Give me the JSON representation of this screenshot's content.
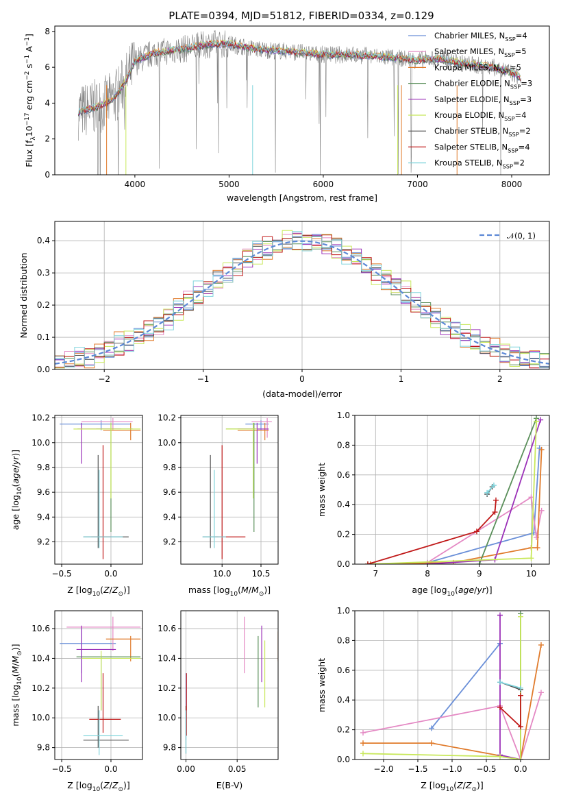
{
  "figure": {
    "title": "PLATE=0394, MJD=51812, FIBERID=0334, z=0.129"
  },
  "colors": {
    "chabrier_miles": "#6a8fd8",
    "salpeter_miles": "#e489c4",
    "kroupa_miles": "#e07b2c",
    "chabrier_elodie": "#5a8f5a",
    "salpeter_elodie": "#9b30b8",
    "kroupa_elodie": "#c8e85a",
    "chabrier_stelib": "#555555",
    "salpeter_stelib": "#c01818",
    "kroupa_stelib": "#7fd4dc",
    "data": "#808080",
    "grid": "#b0b0b0"
  },
  "legend": [
    {
      "pre": "Chabrier MILES, N",
      "sub": "SSP",
      "post": "=4",
      "color": "#6a8fd8"
    },
    {
      "pre": "Salpeter MILES, N",
      "sub": "SSP",
      "post": "=5",
      "color": "#e489c4"
    },
    {
      "pre": "Kroupa MILES, N",
      "sub": "SSP",
      "post": "=5",
      "color": "#e07b2c"
    },
    {
      "pre": "Chabrier ELODIE, N",
      "sub": "SSP",
      "post": "=3",
      "color": "#5a8f5a"
    },
    {
      "pre": "Salpeter ELODIE, N",
      "sub": "SSP",
      "post": "=3",
      "color": "#9b30b8"
    },
    {
      "pre": "Kroupa ELODIE, N",
      "sub": "SSP",
      "post": "=4",
      "color": "#c8e85a"
    },
    {
      "pre": "Chabrier STELIB, N",
      "sub": "SSP",
      "post": "=2",
      "color": "#555555"
    },
    {
      "pre": "Salpeter STELIB, N",
      "sub": "SSP",
      "post": "=4",
      "color": "#c01818"
    },
    {
      "pre": "Kroupa STELIB, N",
      "sub": "SSP",
      "post": "=2",
      "color": "#7fd4dc"
    }
  ],
  "axes": {
    "p1": {
      "xlabel": "wavelength [Angstrom, rest frame]",
      "ylabel": "Flux [f_λ 10^-17 erg cm^-2 s^-1 A^-1]",
      "xticks": [
        "4000",
        "5000",
        "6000",
        "7000",
        "8000"
      ],
      "yticks": [
        "0",
        "2",
        "4",
        "6",
        "8"
      ]
    },
    "p2": {
      "xlabel": "(data-model)/error",
      "ylabel": "Normed distribution",
      "xticks": [
        "−2",
        "−1",
        "0",
        "1",
        "2"
      ],
      "yticks": [
        "0.0",
        "0.1",
        "0.2",
        "0.3",
        "0.4"
      ],
      "legend": "𝒩(0, 1)"
    },
    "p3": {
      "xlabel": "Z [log10(Z/Z⊙)]",
      "ylabel": "age  [log10(age/yr)]",
      "xticks": [
        "−0.5",
        "0.0"
      ],
      "yticks": [
        "9.2",
        "9.4",
        "9.6",
        "9.8",
        "10.0",
        "10.2"
      ]
    },
    "p4": {
      "xlabel": "mass [log10(M/M⊙)]",
      "xticks": [
        "10.0",
        "10.5"
      ],
      "yticks": [
        "9.2",
        "9.4",
        "9.6",
        "9.8",
        "10.0",
        "10.2"
      ]
    },
    "p5": {
      "xlabel": "age  [log10(age/yr)]",
      "ylabel": "mass weight",
      "xticks": [
        "7",
        "8",
        "9",
        "10"
      ],
      "yticks": [
        "0.0",
        "0.2",
        "0.4",
        "0.6",
        "0.8",
        "1.0"
      ]
    },
    "p6": {
      "xlabel": "Z [log10(Z/Z⊙)]",
      "ylabel": "mass [log10(M/M⊙)]",
      "xticks": [
        "−0.5",
        "0.0"
      ],
      "yticks": [
        "9.8",
        "10.0",
        "10.2",
        "10.4",
        "10.6"
      ]
    },
    "p7": {
      "xlabel": "E(B-V)",
      "xticks": [
        "0.00",
        "0.05"
      ],
      "yticks": [
        "9.8",
        "10.0",
        "10.2",
        "10.4",
        "10.6"
      ]
    },
    "p8": {
      "xlabel": "Z [log10(Z/Z⊙)]",
      "ylabel": "mass weight",
      "xticks": [
        "−2.0",
        "−1.5",
        "−1.0",
        "−0.5",
        "0.0"
      ],
      "yticks": [
        "0.0",
        "0.2",
        "0.4",
        "0.6",
        "0.8",
        "1.0"
      ]
    }
  },
  "chart_data": [
    {
      "type": "line",
      "title": "PLATE=0394, MJD=51812, FIBERID=0334, z=0.129",
      "xlabel": "wavelength [Angstrom, rest frame]",
      "ylabel": "Flux [fλ 10^-17 erg cm^-2 s^-1 A^-1]",
      "xlim": [
        3150,
        8400
      ],
      "ylim": [
        0,
        8.3
      ],
      "spectrum_continuum": {
        "x": [
          3400,
          3600,
          3700,
          3800,
          3900,
          4000,
          4200,
          4500,
          4800,
          5000,
          5300,
          5600,
          6000,
          6300,
          6600,
          6800,
          7000,
          7200,
          7500,
          7800,
          8000,
          8100
        ],
        "y": [
          3.5,
          3.8,
          4.0,
          4.4,
          5.2,
          6.3,
          6.8,
          7.0,
          7.3,
          7.3,
          7.0,
          6.9,
          6.7,
          6.7,
          6.6,
          6.5,
          6.4,
          6.5,
          6.2,
          6.0,
          5.7,
          5.4
        ]
      }
    },
    {
      "type": "bar",
      "xlabel": "(data-model)/error",
      "ylabel": "Normed distribution",
      "xlim": [
        -2.5,
        2.5
      ],
      "ylim": [
        0,
        0.46
      ],
      "bin_width": 0.1,
      "reference": {
        "name": "𝒩(0, 1)",
        "mu": 0,
        "sigma": 1
      },
      "approx_histogram_offsets": [
        0.012,
        -0.015,
        0.02,
        -0.008,
        0.018,
        -0.022,
        0.01,
        -0.012,
        0.025,
        -0.018,
        0.008,
        -0.01,
        0.022,
        -0.02,
        0.015,
        -0.005,
        0.012,
        -0.025,
        0.02,
        -0.01,
        0.03,
        -0.018,
        0.01,
        -0.02,
        0.015,
        -0.008,
        0.025,
        -0.015,
        0.008,
        -0.012,
        0.02,
        -0.02,
        0.012,
        -0.005,
        0.018,
        -0.022,
        0.01,
        -0.01,
        0.015,
        -0.018,
        0.008,
        -0.012,
        0.022,
        -0.015,
        0.012,
        -0.008,
        0.018,
        -0.02,
        0.01,
        -0.01
      ]
    },
    {
      "type": "scatter",
      "xlabel": "Z [log10(Z/Z⊙)]",
      "ylabel": "age  [log10(age/yr)]",
      "xlim": [
        -0.57,
        0.32
      ],
      "ylim": [
        9.02,
        10.22
      ],
      "points": [
        {
          "c": "#6a8fd8",
          "x": -0.1,
          "y": 10.15,
          "xe": [
            -0.52,
            0.2
          ],
          "ye": [
            10.1,
            10.18
          ]
        },
        {
          "c": "#e489c4",
          "x": 0.02,
          "y": 10.17,
          "xe": [
            -0.3,
            0.22
          ],
          "ye": [
            10.1,
            10.2
          ]
        },
        {
          "c": "#e07b2c",
          "x": 0.2,
          "y": 10.1,
          "xe": [
            -0.08,
            0.3
          ],
          "ye": [
            10.02,
            10.16
          ]
        },
        {
          "c": "#5a8f5a",
          "x": 0.0,
          "y": 10.11,
          "xe": [
            -0.15,
            0.22
          ],
          "ye": [
            9.28,
            10.16
          ]
        },
        {
          "c": "#9b30b8",
          "x": -0.3,
          "y": 10.11,
          "xe": [
            -0.34,
            0.1
          ],
          "ye": [
            9.83,
            10.16
          ]
        },
        {
          "c": "#c8e85a",
          "x": 0.0,
          "y": 10.11,
          "xe": [
            -0.38,
            0.3
          ],
          "ye": [
            9.55,
            10.16
          ]
        },
        {
          "c": "#555555",
          "x": -0.13,
          "y": 9.24,
          "xe": [
            -0.28,
            0.18
          ],
          "ye": [
            9.15,
            9.9
          ]
        },
        {
          "c": "#c01818",
          "x": -0.08,
          "y": 9.24,
          "xe": [
            -0.2,
            0.0
          ],
          "ye": [
            9.06,
            9.98
          ]
        },
        {
          "c": "#7fd4dc",
          "x": -0.12,
          "y": 9.24,
          "xe": [
            -0.28,
            0.12
          ],
          "ye": [
            9.15,
            9.78
          ]
        }
      ]
    },
    {
      "type": "scatter",
      "xlabel": "mass [log10(M/M⊙)]",
      "xlim": [
        9.47,
        10.72
      ],
      "ylim": [
        9.02,
        10.22
      ],
      "points": [
        {
          "c": "#6a8fd8",
          "x": 10.5,
          "y": 10.15,
          "xe": [
            10.3,
            10.6
          ],
          "ye": [
            10.1,
            10.18
          ]
        },
        {
          "c": "#e489c4",
          "x": 10.58,
          "y": 10.17,
          "xe": [
            10.38,
            10.64
          ],
          "ye": [
            10.04,
            10.2
          ]
        },
        {
          "c": "#e07b2c",
          "x": 10.55,
          "y": 10.1,
          "xe": [
            10.2,
            10.6
          ],
          "ye": [
            10.02,
            10.16
          ]
        },
        {
          "c": "#5a8f5a",
          "x": 10.41,
          "y": 10.11,
          "xe": [
            10.05,
            10.42
          ],
          "ye": [
            9.28,
            10.16
          ]
        },
        {
          "c": "#9b30b8",
          "x": 10.45,
          "y": 10.11,
          "xe": [
            10.2,
            10.6
          ],
          "ye": [
            9.83,
            10.16
          ]
        },
        {
          "c": "#c8e85a",
          "x": 10.4,
          "y": 10.11,
          "xe": [
            10.05,
            10.45
          ],
          "ye": [
            9.55,
            10.16
          ]
        },
        {
          "c": "#555555",
          "x": 9.85,
          "y": 9.24,
          "xe": [
            9.75,
            9.95
          ],
          "ye": [
            9.15,
            9.9
          ]
        },
        {
          "c": "#c01818",
          "x": 10.0,
          "y": 9.24,
          "xe": [
            9.9,
            10.3
          ],
          "ye": [
            9.06,
            9.98
          ]
        },
        {
          "c": "#7fd4dc",
          "x": 9.9,
          "y": 9.24,
          "xe": [
            9.75,
            10.05
          ],
          "ye": [
            9.15,
            9.78
          ]
        }
      ]
    },
    {
      "type": "line",
      "xlabel": "age  [log10(age/yr)]",
      "ylabel": "mass weight",
      "xlim": [
        6.6,
        10.35
      ],
      "ylim": [
        0,
        1
      ],
      "series": [
        {
          "c": "#6a8fd8",
          "pts": [
            [
              6.85,
              0.0
            ],
            [
              8.0,
              0.01
            ],
            [
              10.05,
              0.21
            ],
            [
              10.16,
              0.78
            ]
          ]
        },
        {
          "c": "#e489c4",
          "pts": [
            [
              6.9,
              0.0
            ],
            [
              8.0,
              0.01
            ],
            [
              10.0,
              0.45
            ],
            [
              10.1,
              0.18
            ],
            [
              10.2,
              0.36
            ]
          ]
        },
        {
          "c": "#e07b2c",
          "pts": [
            [
              6.9,
              0.0
            ],
            [
              8.5,
              0.01
            ],
            [
              10.0,
              0.11
            ],
            [
              10.12,
              0.11
            ],
            [
              10.2,
              0.77
            ]
          ]
        },
        {
          "c": "#5a8f5a",
          "pts": [
            [
              9.0,
              0.0
            ],
            [
              10.1,
              0.98
            ]
          ]
        },
        {
          "c": "#9b30b8",
          "pts": [
            [
              8.0,
              0.0
            ],
            [
              9.3,
              0.03
            ],
            [
              10.18,
              0.97
            ]
          ]
        },
        {
          "c": "#c8e85a",
          "pts": [
            [
              6.85,
              0.0
            ],
            [
              10.0,
              0.04
            ],
            [
              10.1,
              0.96
            ]
          ]
        },
        {
          "c": "#555555",
          "pts": [
            [
              9.15,
              0.47
            ],
            [
              9.25,
              0.52
            ]
          ]
        },
        {
          "c": "#c01818",
          "pts": [
            [
              6.85,
              0.0
            ],
            [
              8.95,
              0.22
            ],
            [
              9.3,
              0.35
            ],
            [
              9.32,
              0.43
            ]
          ]
        },
        {
          "c": "#7fd4dc",
          "pts": [
            [
              9.15,
              0.48
            ],
            [
              9.28,
              0.53
            ]
          ]
        }
      ]
    },
    {
      "type": "scatter",
      "xlabel": "Z [log10(Z/Z⊙)]",
      "ylabel": "mass [log10(M/M⊙)]",
      "xlim": [
        -0.57,
        0.32
      ],
      "ylim": [
        9.72,
        10.72
      ],
      "points": [
        {
          "c": "#6a8fd8",
          "x": -0.3,
          "y": 10.5,
          "xe": [
            -0.52,
            0.05
          ],
          "ye": [
            10.3,
            10.6
          ]
        },
        {
          "c": "#e489c4",
          "x": 0.02,
          "y": 10.61,
          "xe": [
            -0.45,
            0.3
          ],
          "ye": [
            10.45,
            10.68
          ]
        },
        {
          "c": "#e07b2c",
          "x": 0.2,
          "y": 10.53,
          "xe": [
            -0.05,
            0.3
          ],
          "ye": [
            10.38,
            10.55
          ]
        },
        {
          "c": "#5a8f5a",
          "x": -0.1,
          "y": 10.41,
          "xe": [
            -0.35,
            0.3
          ],
          "ye": [
            10.05,
            10.42
          ]
        },
        {
          "c": "#9b30b8",
          "x": -0.3,
          "y": 10.46,
          "xe": [
            -0.35,
            0.05
          ],
          "ye": [
            10.24,
            10.62
          ]
        },
        {
          "c": "#c8e85a",
          "x": -0.1,
          "y": 10.4,
          "xe": [
            -0.3,
            0.3
          ],
          "ye": [
            10.05,
            10.45
          ]
        },
        {
          "c": "#555555",
          "x": -0.13,
          "y": 9.85,
          "xe": [
            -0.28,
            0.18
          ],
          "ye": [
            9.8,
            10.08
          ]
        },
        {
          "c": "#c01818",
          "x": -0.08,
          "y": 9.99,
          "xe": [
            -0.22,
            0.1
          ],
          "ye": [
            9.9,
            10.3
          ]
        },
        {
          "c": "#7fd4dc",
          "x": -0.12,
          "y": 9.88,
          "xe": [
            -0.28,
            0.12
          ],
          "ye": [
            9.75,
            10.05
          ]
        }
      ]
    },
    {
      "type": "scatter",
      "xlabel": "E(B-V)",
      "xlim": [
        -0.005,
        0.09
      ],
      "ylim": [
        9.72,
        10.72
      ],
      "points": [
        {
          "c": "#6a8fd8",
          "x": 0.0,
          "y": 10.0,
          "ye": [
            9.85,
            10.3
          ]
        },
        {
          "c": "#e489c4",
          "x": 0.057,
          "y": 10.55,
          "ye": [
            10.3,
            10.68
          ]
        },
        {
          "c": "#e07b2c",
          "x": 0.09,
          "y": 10.5,
          "ye": [
            10.38,
            10.58
          ]
        },
        {
          "c": "#5a8f5a",
          "x": 0.0705,
          "y": 10.41,
          "ye": [
            10.07,
            10.55
          ]
        },
        {
          "c": "#9b30b8",
          "x": 0.074,
          "y": 10.46,
          "ye": [
            10.24,
            10.62
          ]
        },
        {
          "c": "#c8e85a",
          "x": 0.077,
          "y": 10.38,
          "ye": [
            10.07,
            10.52
          ]
        },
        {
          "c": "#555555",
          "x": 0.0,
          "y": 9.9,
          "ye": [
            9.76,
            10.08
          ]
        },
        {
          "c": "#c01818",
          "x": 0.0005,
          "y": 10.0,
          "ye": [
            9.88,
            10.3
          ]
        },
        {
          "c": "#7fd4dc",
          "x": 0.0,
          "y": 9.9,
          "ye": [
            9.76,
            10.05
          ]
        }
      ]
    },
    {
      "type": "line",
      "xlabel": "Z [log10(Z/Z⊙)]",
      "ylabel": "mass weight",
      "xlim": [
        -2.42,
        0.42
      ],
      "ylim": [
        0,
        1
      ],
      "series": [
        {
          "c": "#6a8fd8",
          "pts": [
            [
              -1.3,
              0.21
            ],
            [
              -0.3,
              0.78
            ]
          ]
        },
        {
          "c": "#e489c4",
          "pts": [
            [
              -2.3,
              0.18
            ],
            [
              -0.3,
              0.36
            ],
            [
              0.0,
              0.0
            ],
            [
              0.3,
              0.45
            ]
          ]
        },
        {
          "c": "#e07b2c",
          "pts": [
            [
              -2.3,
              0.11
            ],
            [
              -1.3,
              0.11
            ],
            [
              0.0,
              0.0
            ],
            [
              0.3,
              0.77
            ]
          ]
        },
        {
          "c": "#5a8f5a",
          "pts": [
            [
              0.0,
              0.0
            ],
            [
              0.0,
              0.98
            ]
          ]
        },
        {
          "c": "#9b30b8",
          "pts": [
            [
              -0.3,
              0.97
            ],
            [
              -0.3,
              0.03
            ],
            [
              0.0,
              0.0
            ]
          ]
        },
        {
          "c": "#c8e85a",
          "pts": [
            [
              -2.3,
              0.04
            ],
            [
              -0.3,
              0.02
            ],
            [
              0.0,
              0.0
            ],
            [
              0.0,
              0.96
            ]
          ]
        },
        {
          "c": "#555555",
          "pts": [
            [
              -0.3,
              0.52
            ],
            [
              0.0,
              0.47
            ]
          ]
        },
        {
          "c": "#c01818",
          "pts": [
            [
              -0.3,
              0.35
            ],
            [
              0.0,
              0.22
            ],
            [
              0.0,
              0.43
            ]
          ]
        },
        {
          "c": "#7fd4dc",
          "pts": [
            [
              -0.3,
              0.52
            ],
            [
              0.0,
              0.48
            ]
          ]
        }
      ]
    }
  ]
}
